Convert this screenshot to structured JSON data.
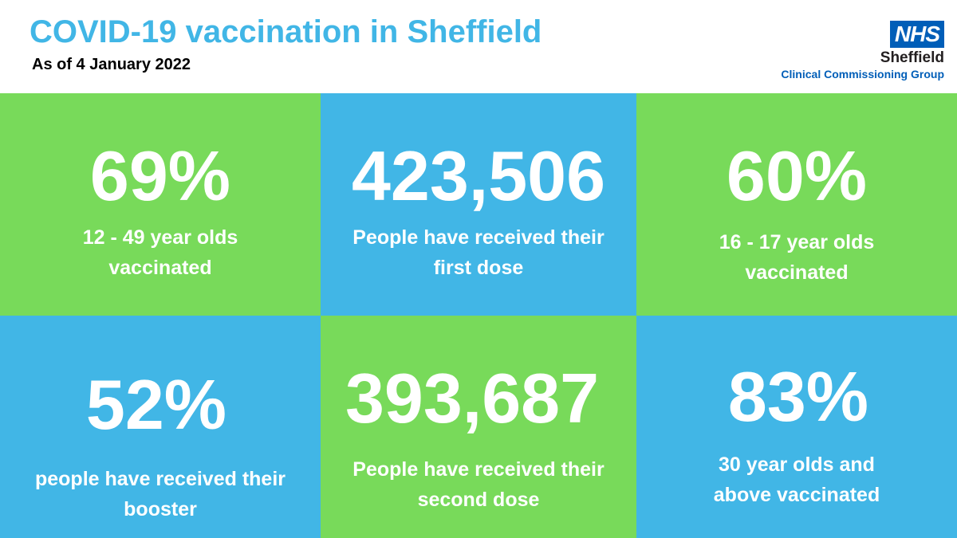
{
  "header": {
    "title": "COVID-19 vaccination in Sheffield",
    "subtitle": "As of 4 January 2022"
  },
  "logo": {
    "nhs": "NHS",
    "org": "Sheffield",
    "sub": "Clinical Commissioning Group"
  },
  "colors": {
    "green": "#78da5a",
    "blue": "#41b6e6",
    "nhs_blue": "#005eb8"
  },
  "tiles": [
    {
      "stat": "69%",
      "line1": "12 - 49 year olds",
      "line2": "vaccinated",
      "color": "green"
    },
    {
      "stat": "423,506",
      "line1": "People have received their",
      "line2": "first dose",
      "color": "blue"
    },
    {
      "stat": "60%",
      "line1": "16 - 17 year olds",
      "line2": "vaccinated",
      "color": "green"
    },
    {
      "stat": "52%",
      "line1": "people have received their",
      "line2": "booster",
      "color": "blue"
    },
    {
      "stat": "393,687",
      "line1": "People have received their",
      "line2": "second dose",
      "color": "green"
    },
    {
      "stat": "83%",
      "line1": "30 year olds and",
      "line2": "above vaccinated",
      "color": "blue"
    }
  ]
}
